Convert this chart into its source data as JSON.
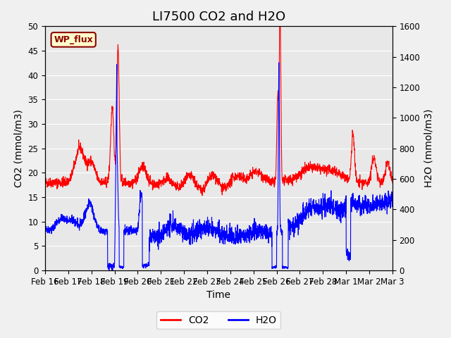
{
  "title": "LI7500 CO2 and H2O",
  "xlabel": "Time",
  "ylabel_left": "CO2 (mmol/m3)",
  "ylabel_right": "H2O (mmol/m3)",
  "ylim_left": [
    0,
    50
  ],
  "ylim_right": [
    0,
    1600
  ],
  "yticks_left": [
    0,
    5,
    10,
    15,
    20,
    25,
    30,
    35,
    40,
    45,
    50
  ],
  "yticks_right": [
    0,
    200,
    400,
    600,
    800,
    1000,
    1200,
    1400,
    1600
  ],
  "x_tick_labels": [
    "Feb 16",
    "Feb 17",
    "Feb 18",
    "Feb 19",
    "Feb 20",
    "Feb 21",
    "Feb 22",
    "Feb 23",
    "Feb 24",
    "Feb 25",
    "Feb 26",
    "Feb 27",
    "Feb 28",
    "Mar 1",
    "Mar 2",
    "Mar 3"
  ],
  "annotation_text": "WP_flux",
  "co2_color": "#ff0000",
  "h2o_color": "#0000ff",
  "plot_bg_color": "#e8e8e8",
  "fig_bg_color": "#f0f0f0",
  "grid_color": "#ffffff",
  "title_fontsize": 13,
  "axis_label_fontsize": 10,
  "tick_fontsize": 8.5,
  "legend_fontsize": 10
}
